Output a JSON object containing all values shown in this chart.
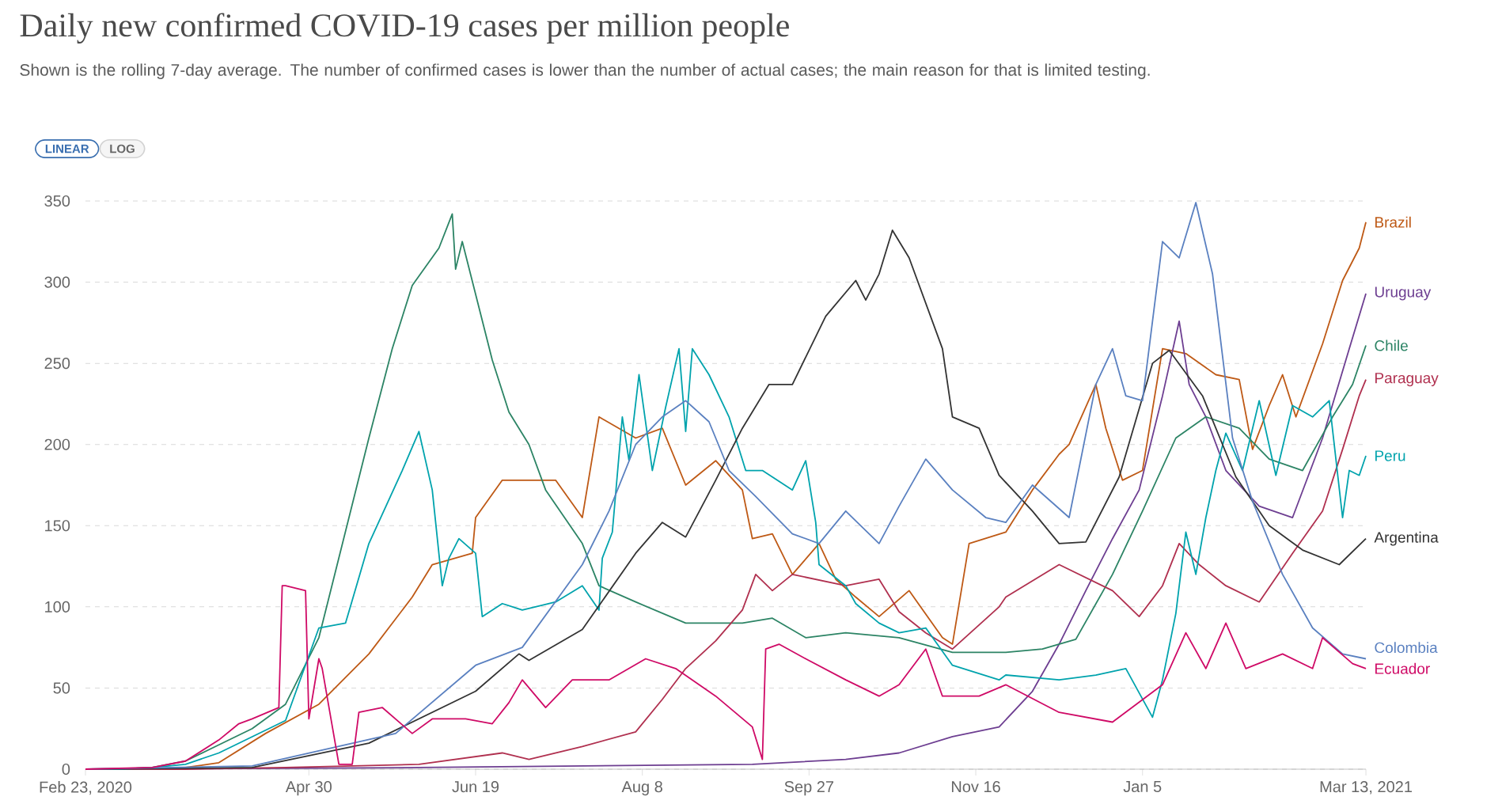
{
  "chart_data": {
    "type": "line",
    "title": "Daily new confirmed COVID-19 cases per million people",
    "subtitle": "Shown is the rolling 7-day average. The number of confirmed cases is lower than the number of actual cases; the main reason for that is limited testing.",
    "annotations": [
      "LINEAR",
      "LOG"
    ],
    "xlim": [
      "2020-02-23",
      "2021-03-13"
    ],
    "xticks": [
      {
        "value": "2020-02-23",
        "label": "Feb 23, 2020"
      },
      {
        "value": "2020-04-30",
        "label": "Apr 30"
      },
      {
        "value": "2020-06-19",
        "label": "Jun 19"
      },
      {
        "value": "2020-08-08",
        "label": "Aug 8"
      },
      {
        "value": "2020-09-27",
        "label": "Sep 27"
      },
      {
        "value": "2020-11-16",
        "label": "Nov 16"
      },
      {
        "value": "2021-01-05",
        "label": "Jan 5"
      },
      {
        "value": "2021-03-13",
        "label": "Mar 13, 2021"
      }
    ],
    "ylim": [
      0,
      350
    ],
    "yticks": [
      0,
      50,
      100,
      150,
      200,
      250,
      300,
      350
    ],
    "grid": "y",
    "legend": "right",
    "series": [
      {
        "name": "Brazil",
        "color": "#be5915",
        "x": [
          "2020-02-23",
          "2020-03-14",
          "2020-03-24",
          "2020-04-03",
          "2020-04-17",
          "2020-05-03",
          "2020-05-18",
          "2020-05-31",
          "2020-06-06",
          "2020-06-18",
          "2020-06-19",
          "2020-06-27",
          "2020-07-03",
          "2020-07-13",
          "2020-07-21",
          "2020-07-26",
          "2020-08-06",
          "2020-08-14",
          "2020-08-21",
          "2020-08-30",
          "2020-09-07",
          "2020-09-10",
          "2020-09-16",
          "2020-09-22",
          "2020-09-30",
          "2020-10-05",
          "2020-10-11",
          "2020-10-18",
          "2020-10-27",
          "2020-11-06",
          "2020-11-09",
          "2020-11-14",
          "2020-11-25",
          "2020-12-03",
          "2020-12-11",
          "2020-12-14",
          "2020-12-22",
          "2020-12-25",
          "2020-12-30",
          "2021-01-05",
          "2021-01-11",
          "2021-01-18",
          "2021-01-27",
          "2021-02-03",
          "2021-02-07",
          "2021-02-12",
          "2021-02-16",
          "2021-02-20",
          "2021-02-28",
          "2021-03-06",
          "2021-03-11",
          "2021-03-13"
        ],
        "values": [
          0,
          0,
          1,
          4,
          22,
          40,
          71,
          106,
          126,
          133,
          155,
          178,
          178,
          178,
          155,
          217,
          204,
          210,
          175,
          190,
          172,
          142,
          145,
          120,
          139,
          117,
          106,
          94,
          110,
          81,
          77,
          139,
          146,
          172,
          194,
          200,
          237,
          210,
          178,
          184,
          259,
          256,
          243,
          240,
          197,
          224,
          243,
          217,
          262,
          301,
          321,
          337
        ]
      },
      {
        "name": "Uruguay",
        "color": "#6d3e91",
        "x": [
          "2020-02-23",
          "2020-06-02",
          "2020-09-10",
          "2020-10-08",
          "2020-10-24",
          "2020-11-09",
          "2020-11-23",
          "2020-12-03",
          "2020-12-11",
          "2020-12-19",
          "2020-12-27",
          "2021-01-04",
          "2021-01-11",
          "2021-01-16",
          "2021-01-19",
          "2021-01-24",
          "2021-01-30",
          "2021-02-09",
          "2021-02-19",
          "2021-02-28",
          "2021-03-08",
          "2021-03-13"
        ],
        "values": [
          0,
          1,
          3,
          6,
          10,
          20,
          26,
          48,
          77,
          110,
          142,
          172,
          230,
          276,
          237,
          217,
          184,
          162,
          155,
          204,
          259,
          293
        ]
      },
      {
        "name": "Chile",
        "color": "#2c8465",
        "x": [
          "2020-02-23",
          "2020-03-04",
          "2020-03-14",
          "2020-03-24",
          "2020-04-03",
          "2020-04-13",
          "2020-04-23",
          "2020-05-03",
          "2020-05-18",
          "2020-05-25",
          "2020-05-31",
          "2020-06-08",
          "2020-06-12",
          "2020-06-13",
          "2020-06-15",
          "2020-06-24",
          "2020-06-29",
          "2020-07-05",
          "2020-07-10",
          "2020-07-21",
          "2020-07-26",
          "2020-08-06",
          "2020-08-21",
          "2020-09-07",
          "2020-09-16",
          "2020-09-26",
          "2020-10-08",
          "2020-10-24",
          "2020-11-09",
          "2020-11-25",
          "2020-12-06",
          "2020-12-16",
          "2020-12-27",
          "2021-01-05",
          "2021-01-15",
          "2021-01-24",
          "2021-02-03",
          "2021-02-12",
          "2021-02-22",
          "2021-03-03",
          "2021-03-09",
          "2021-03-13"
        ],
        "values": [
          0,
          0,
          1,
          5,
          15,
          25,
          40,
          81,
          204,
          259,
          298,
          321,
          342,
          308,
          325,
          252,
          220,
          200,
          172,
          139,
          113,
          103,
          90,
          90,
          93,
          81,
          84,
          81,
          72,
          72,
          74,
          80,
          120,
          159,
          204,
          217,
          210,
          191,
          184,
          217,
          237,
          261
        ]
      },
      {
        "name": "Paraguay",
        "color": "#b0304f",
        "x": [
          "2020-02-23",
          "2020-03-24",
          "2020-04-23",
          "2020-06-02",
          "2020-06-27",
          "2020-07-05",
          "2020-07-21",
          "2020-08-06",
          "2020-08-14",
          "2020-08-21",
          "2020-08-30",
          "2020-09-07",
          "2020-09-11",
          "2020-09-16",
          "2020-09-22",
          "2020-10-08",
          "2020-10-18",
          "2020-10-24",
          "2020-11-01",
          "2020-11-09",
          "2020-11-23",
          "2020-11-25",
          "2020-12-11",
          "2020-12-27",
          "2021-01-04",
          "2021-01-11",
          "2021-01-16",
          "2021-01-22",
          "2021-01-30",
          "2021-02-09",
          "2021-02-19",
          "2021-02-28",
          "2021-03-06",
          "2021-03-11",
          "2021-03-13"
        ],
        "values": [
          0,
          0,
          1,
          3,
          10,
          6,
          14,
          23,
          43,
          62,
          79,
          98,
          120,
          110,
          120,
          113,
          117,
          97,
          84,
          74,
          100,
          106,
          126,
          110,
          94,
          113,
          139,
          126,
          113,
          103,
          133,
          159,
          197,
          230,
          240
        ]
      },
      {
        "name": "Peru",
        "color": "#00a3ad",
        "x": [
          "2020-02-23",
          "2020-03-04",
          "2020-03-14",
          "2020-03-24",
          "2020-04-03",
          "2020-04-13",
          "2020-04-23",
          "2020-05-03",
          "2020-05-11",
          "2020-05-18",
          "2020-05-28",
          "2020-06-02",
          "2020-06-06",
          "2020-06-09",
          "2020-06-11",
          "2020-06-14",
          "2020-06-19",
          "2020-06-21",
          "2020-06-27",
          "2020-07-03",
          "2020-07-13",
          "2020-07-21",
          "2020-07-26",
          "2020-07-27",
          "2020-07-30",
          "2020-08-02",
          "2020-08-04",
          "2020-08-07",
          "2020-08-11",
          "2020-08-15",
          "2020-08-19",
          "2020-08-21",
          "2020-08-23",
          "2020-08-28",
          "2020-09-03",
          "2020-09-08",
          "2020-09-13",
          "2020-09-22",
          "2020-09-26",
          "2020-09-29",
          "2020-09-30",
          "2020-10-08",
          "2020-10-11",
          "2020-10-18",
          "2020-10-24",
          "2020-11-01",
          "2020-11-09",
          "2020-11-23",
          "2020-11-25",
          "2020-12-11",
          "2020-12-22",
          "2020-12-31",
          "2021-01-08",
          "2021-01-11",
          "2021-01-15",
          "2021-01-18",
          "2021-01-21",
          "2021-01-24",
          "2021-01-27",
          "2021-01-30",
          "2021-02-04",
          "2021-02-09",
          "2021-02-14",
          "2021-02-19",
          "2021-02-25",
          "2021-03-02",
          "2021-03-06",
          "2021-03-08",
          "2021-03-11",
          "2021-03-13"
        ],
        "values": [
          0,
          0,
          1,
          3,
          10,
          20,
          30,
          87,
          90,
          139,
          184,
          208,
          172,
          113,
          130,
          142,
          133,
          94,
          102,
          98,
          103,
          113,
          98,
          130,
          146,
          217,
          190,
          243,
          184,
          223,
          259,
          208,
          259,
          243,
          217,
          184,
          184,
          172,
          190,
          152,
          126,
          113,
          102,
          90,
          84,
          87,
          64,
          55,
          58,
          55,
          58,
          62,
          32,
          55,
          96,
          146,
          120,
          155,
          184,
          207,
          184,
          227,
          181,
          224,
          217,
          227,
          155,
          184,
          181,
          193
        ]
      },
      {
        "name": "Argentina",
        "color": "#333333",
        "x": [
          "2020-02-23",
          "2020-04-13",
          "2020-05-18",
          "2020-06-19",
          "2020-07-02",
          "2020-07-05",
          "2020-07-21",
          "2020-08-06",
          "2020-08-14",
          "2020-08-21",
          "2020-08-30",
          "2020-09-07",
          "2020-09-15",
          "2020-09-22",
          "2020-10-02",
          "2020-10-11",
          "2020-10-14",
          "2020-10-18",
          "2020-10-22",
          "2020-10-27",
          "2020-11-06",
          "2020-11-09",
          "2020-11-17",
          "2020-11-23",
          "2020-12-03",
          "2020-12-11",
          "2020-12-19",
          "2020-12-29",
          "2021-01-08",
          "2021-01-13",
          "2021-01-23",
          "2021-02-02",
          "2021-02-12",
          "2021-02-22",
          "2021-03-05",
          "2021-03-13"
        ],
        "values": [
          0,
          1,
          16,
          48,
          71,
          67,
          86,
          133,
          152,
          143,
          178,
          210,
          237,
          237,
          279,
          301,
          289,
          305,
          332,
          315,
          259,
          217,
          210,
          181,
          159,
          139,
          140,
          180,
          250,
          258,
          230,
          180,
          150,
          135,
          126,
          142
        ]
      },
      {
        "name": "Colombia",
        "color": "#5a80c0",
        "x": [
          "2020-02-23",
          "2020-04-13",
          "2020-05-26",
          "2020-06-19",
          "2020-07-03",
          "2020-07-21",
          "2020-07-29",
          "2020-08-06",
          "2020-08-14",
          "2020-08-21",
          "2020-08-28",
          "2020-09-03",
          "2020-09-11",
          "2020-09-22",
          "2020-09-30",
          "2020-10-08",
          "2020-10-18",
          "2020-10-24",
          "2020-11-01",
          "2020-11-09",
          "2020-11-19",
          "2020-11-25",
          "2020-12-03",
          "2020-12-14",
          "2020-12-22",
          "2020-12-27",
          "2020-12-31",
          "2021-01-05",
          "2021-01-11",
          "2021-01-16",
          "2021-01-21",
          "2021-01-26",
          "2021-02-01",
          "2021-02-07",
          "2021-02-16",
          "2021-02-25",
          "2021-03-06",
          "2021-03-13"
        ],
        "values": [
          0,
          2,
          22,
          64,
          75,
          126,
          159,
          200,
          217,
          227,
          214,
          184,
          168,
          145,
          139,
          159,
          139,
          162,
          191,
          172,
          155,
          152,
          175,
          155,
          237,
          259,
          230,
          227,
          325,
          315,
          349,
          305,
          204,
          165,
          120,
          87,
          71,
          68
        ]
      },
      {
        "name": "Ecuador",
        "color": "#cf0a66",
        "x": [
          "2020-02-23",
          "2020-03-14",
          "2020-03-24",
          "2020-04-03",
          "2020-04-09",
          "2020-04-13",
          "2020-04-21",
          "2020-04-22",
          "2020-04-23",
          "2020-04-29",
          "2020-04-30",
          "2020-05-03",
          "2020-05-04",
          "2020-05-09",
          "2020-05-13",
          "2020-05-15",
          "2020-05-22",
          "2020-05-31",
          "2020-06-06",
          "2020-06-16",
          "2020-06-24",
          "2020-06-29",
          "2020-07-03",
          "2020-07-10",
          "2020-07-18",
          "2020-07-29",
          "2020-08-09",
          "2020-08-18",
          "2020-08-30",
          "2020-09-10",
          "2020-09-13",
          "2020-09-14",
          "2020-09-18",
          "2020-09-26",
          "2020-10-08",
          "2020-10-18",
          "2020-10-24",
          "2020-11-01",
          "2020-11-06",
          "2020-11-17",
          "2020-11-25",
          "2020-12-11",
          "2020-12-27",
          "2021-01-11",
          "2021-01-18",
          "2021-01-24",
          "2021-01-30",
          "2021-02-05",
          "2021-02-16",
          "2021-02-25",
          "2021-02-28",
          "2021-03-09",
          "2021-03-13"
        ],
        "values": [
          0,
          1,
          5,
          18,
          28,
          31,
          38,
          113,
          113,
          110,
          31,
          68,
          62,
          3,
          3,
          35,
          38,
          22,
          31,
          31,
          28,
          41,
          55,
          38,
          55,
          55,
          68,
          62,
          45,
          26,
          6,
          74,
          77,
          68,
          55,
          45,
          52,
          74,
          45,
          45,
          52,
          35,
          29,
          52,
          84,
          62,
          90,
          62,
          71,
          62,
          81,
          65,
          62
        ]
      }
    ]
  }
}
